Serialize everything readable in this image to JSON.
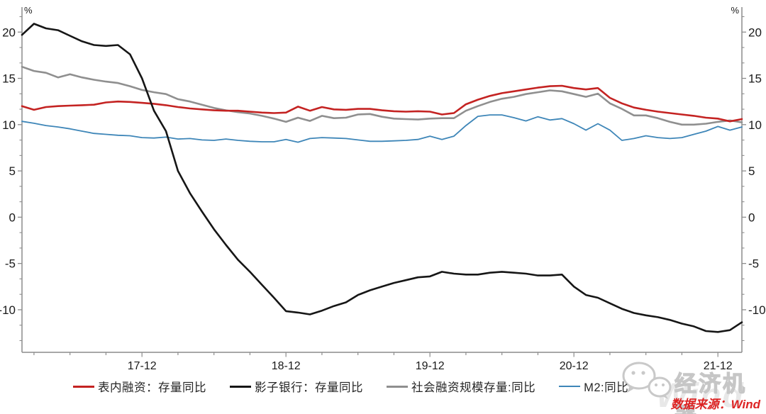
{
  "page": {
    "background": "#ffffff"
  },
  "chart_data": {
    "type": "line",
    "title": "",
    "x_unit": "month",
    "x_months": [
      "2017-02",
      "2017-03",
      "2017-04",
      "2017-05",
      "2017-06",
      "2017-07",
      "2017-08",
      "2017-09",
      "2017-10",
      "2017-11",
      "2017-12",
      "2018-01",
      "2018-02",
      "2018-03",
      "2018-04",
      "2018-05",
      "2018-06",
      "2018-07",
      "2018-08",
      "2018-09",
      "2018-10",
      "2018-11",
      "2018-12",
      "2019-01",
      "2019-02",
      "2019-03",
      "2019-04",
      "2019-05",
      "2019-06",
      "2019-07",
      "2019-08",
      "2019-09",
      "2019-10",
      "2019-11",
      "2019-12",
      "2020-01",
      "2020-02",
      "2020-03",
      "2020-04",
      "2020-05",
      "2020-06",
      "2020-07",
      "2020-08",
      "2020-09",
      "2020-10",
      "2020-11",
      "2020-12",
      "2021-01",
      "2021-02",
      "2021-03",
      "2021-04",
      "2021-05",
      "2021-06",
      "2021-07",
      "2021-08",
      "2021-09",
      "2021-10",
      "2021-11",
      "2021-12",
      "2022-01",
      "2022-02"
    ],
    "x_tick_labels": [
      "17-12",
      "18-12",
      "19-12",
      "20-12",
      "21-12"
    ],
    "y_axis": {
      "unit_label": "%",
      "ticks": [
        -10,
        -5,
        0,
        5,
        10,
        15,
        20
      ],
      "ylim": [
        -14.6,
        22.7
      ],
      "minor_step": 1.6667
    },
    "axis_color": "#8c8c8c",
    "tick_label_color": "#1a1a1a",
    "grid": false,
    "legend_position": "bottom",
    "series": [
      {
        "name": "表内融资：存量同比",
        "color": "#c42322",
        "width": 2.6,
        "values": [
          12.0,
          11.6,
          11.9,
          12.0,
          12.05,
          12.1,
          12.15,
          12.4,
          12.5,
          12.45,
          12.35,
          12.25,
          12.1,
          11.9,
          11.75,
          11.65,
          11.55,
          11.5,
          11.5,
          11.4,
          11.3,
          11.25,
          11.3,
          11.95,
          11.5,
          11.9,
          11.65,
          11.6,
          11.7,
          11.7,
          11.55,
          11.45,
          11.4,
          11.45,
          11.4,
          11.1,
          11.25,
          12.2,
          12.7,
          13.1,
          13.4,
          13.6,
          13.8,
          14.0,
          14.15,
          14.2,
          13.95,
          13.8,
          13.95,
          12.9,
          12.3,
          11.85,
          11.6,
          11.4,
          11.25,
          11.1,
          10.95,
          10.75,
          10.65,
          10.35,
          10.6
        ]
      },
      {
        "name": "影子银行：存量同比",
        "color": "#161616",
        "width": 2.6,
        "values": [
          19.7,
          20.9,
          20.4,
          20.2,
          19.6,
          19.0,
          18.6,
          18.5,
          18.6,
          17.6,
          15.0,
          11.5,
          9.3,
          5.0,
          2.6,
          0.6,
          -1.3,
          -3.0,
          -4.6,
          -5.9,
          -7.3,
          -8.7,
          -10.15,
          -10.3,
          -10.5,
          -10.1,
          -9.6,
          -9.2,
          -8.4,
          -7.9,
          -7.5,
          -7.1,
          -6.8,
          -6.5,
          -6.4,
          -5.9,
          -6.1,
          -6.2,
          -6.2,
          -6.0,
          -5.9,
          -6.0,
          -6.1,
          -6.3,
          -6.3,
          -6.2,
          -7.5,
          -8.4,
          -8.7,
          -9.3,
          -9.9,
          -10.35,
          -10.6,
          -10.8,
          -11.1,
          -11.5,
          -11.8,
          -12.3,
          -12.4,
          -12.2,
          -11.35
        ]
      },
      {
        "name": "社会融资规模存量:同比",
        "color": "#8f8f8f",
        "width": 2.6,
        "values": [
          16.25,
          15.8,
          15.6,
          15.1,
          15.45,
          15.1,
          14.85,
          14.65,
          14.5,
          14.15,
          13.75,
          13.5,
          13.3,
          12.75,
          12.5,
          12.15,
          11.8,
          11.55,
          11.35,
          11.2,
          10.95,
          10.65,
          10.3,
          10.75,
          10.4,
          10.95,
          10.7,
          10.75,
          11.1,
          11.15,
          10.85,
          10.65,
          10.6,
          10.55,
          10.65,
          10.7,
          10.7,
          11.5,
          12.0,
          12.45,
          12.8,
          13.0,
          13.3,
          13.5,
          13.7,
          13.6,
          13.3,
          13.0,
          13.35,
          12.3,
          11.7,
          11.0,
          11.0,
          10.7,
          10.3,
          10.0,
          10.0,
          10.1,
          10.3,
          10.45,
          10.25
        ]
      },
      {
        "name": "M2:同比",
        "color": "#3e86b8",
        "width": 1.8,
        "values": [
          10.35,
          10.15,
          9.9,
          9.75,
          9.55,
          9.3,
          9.05,
          8.95,
          8.85,
          8.8,
          8.6,
          8.55,
          8.65,
          8.45,
          8.5,
          8.35,
          8.3,
          8.45,
          8.3,
          8.2,
          8.15,
          8.15,
          8.4,
          8.1,
          8.5,
          8.6,
          8.55,
          8.5,
          8.35,
          8.2,
          8.2,
          8.25,
          8.3,
          8.4,
          8.75,
          8.4,
          8.75,
          9.9,
          10.9,
          11.05,
          11.05,
          10.75,
          10.4,
          10.85,
          10.5,
          10.65,
          10.1,
          9.4,
          10.1,
          9.4,
          8.3,
          8.5,
          8.8,
          8.6,
          8.5,
          8.6,
          8.95,
          9.3,
          9.8,
          9.4,
          9.75
        ]
      }
    ]
  },
  "watermark": {
    "brand": "经济机器",
    "wind": "Wind"
  },
  "source_text": "数据来源：Wind"
}
